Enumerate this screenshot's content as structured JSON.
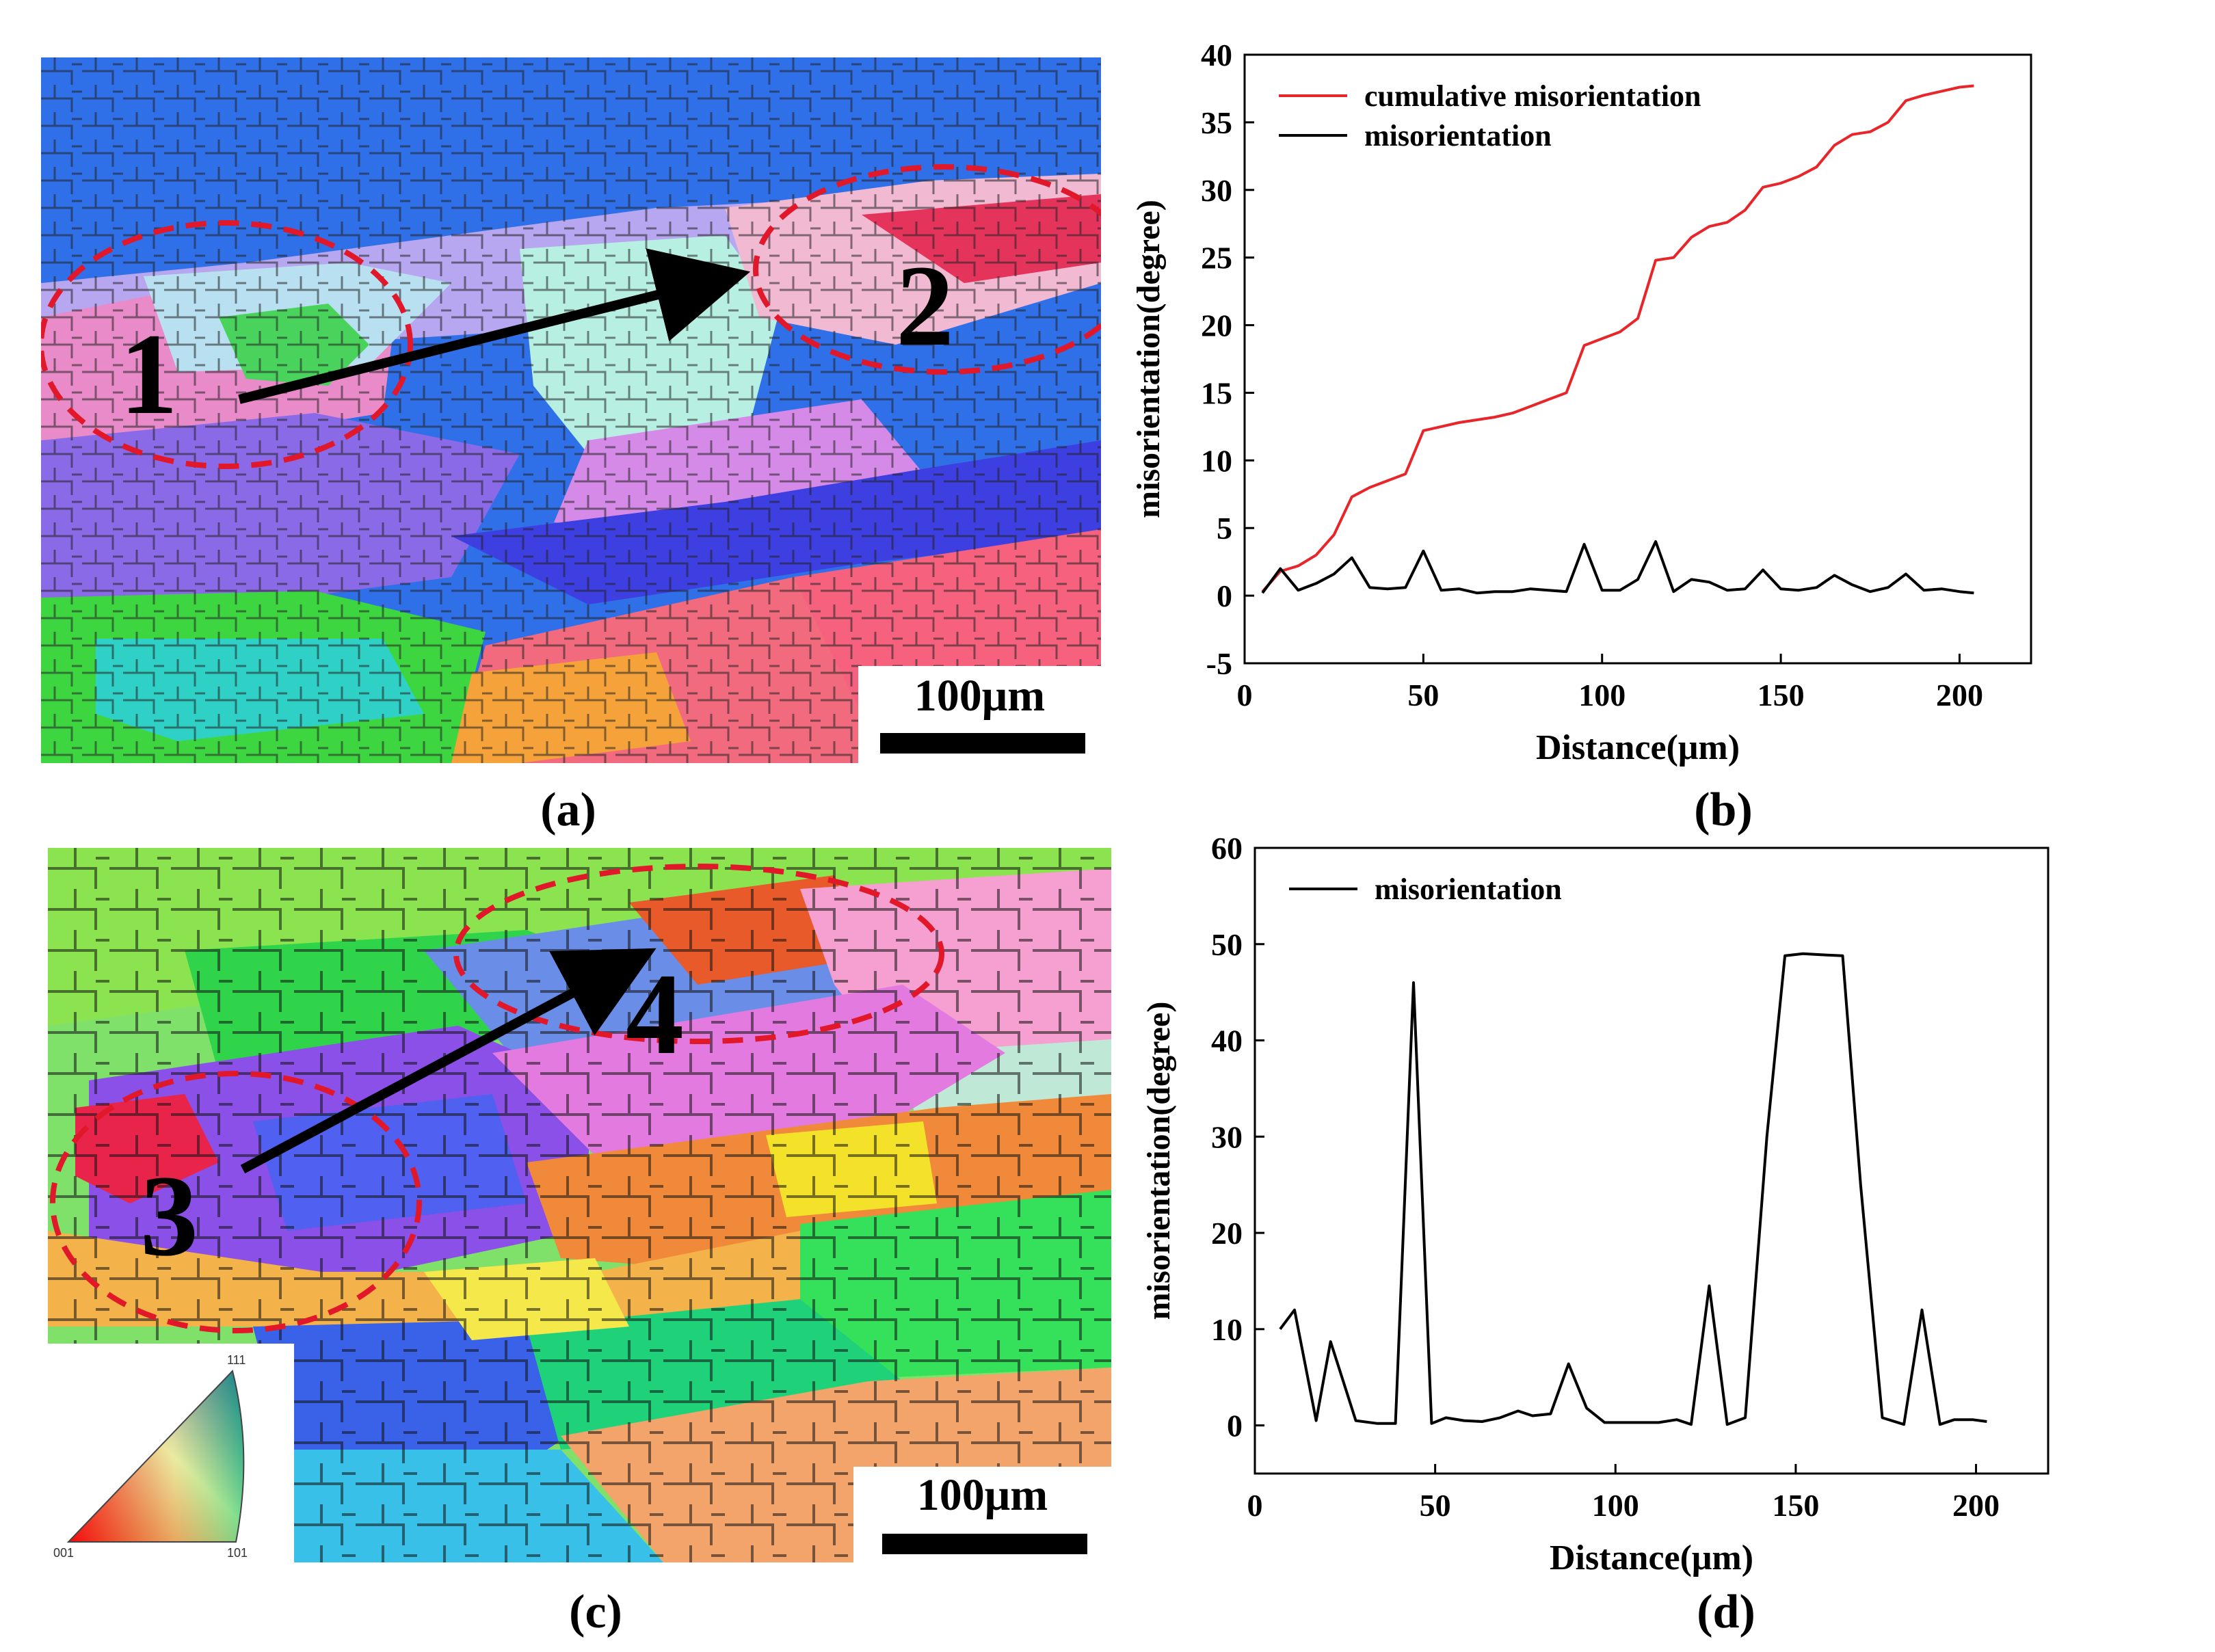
{
  "panels": {
    "a": {
      "caption": "(a)",
      "scale_label": "100μm",
      "region_labels": [
        "1",
        "2"
      ]
    },
    "c": {
      "caption": "(c)",
      "scale_label": "100μm",
      "region_labels": [
        "3",
        "4"
      ],
      "ipf_key": [
        "111",
        "001",
        "101"
      ]
    },
    "b": {
      "caption": "(b)"
    },
    "d": {
      "caption": "(d)"
    }
  },
  "colors": {
    "cumulative": "#e8262a",
    "misorientation": "#000000",
    "circle": "#e0182a"
  },
  "chart_data": [
    {
      "id": "b",
      "type": "line",
      "xlabel": "Distance(μm)",
      "ylabel": "misorientation(degree)",
      "xlim": [
        0,
        220
      ],
      "ylim": [
        -5,
        40
      ],
      "xticks": [
        0,
        50,
        100,
        150,
        200
      ],
      "yticks": [
        -5,
        0,
        5,
        10,
        15,
        20,
        25,
        30,
        35,
        40
      ],
      "legend": "top-left",
      "series": [
        {
          "name": "cumulative misorientation",
          "color": "#e8262a",
          "x": [
            5,
            10,
            15,
            20,
            25,
            30,
            35,
            40,
            45,
            50,
            55,
            60,
            65,
            70,
            75,
            80,
            85,
            90,
            95,
            100,
            105,
            110,
            115,
            120,
            125,
            130,
            135,
            140,
            145,
            150,
            155,
            160,
            165,
            170,
            175,
            180,
            185,
            190,
            195,
            200,
            204
          ],
          "y": [
            0.3,
            1.8,
            2.2,
            3.0,
            4.5,
            7.3,
            8.0,
            8.5,
            9.0,
            12.2,
            12.5,
            12.8,
            13.0,
            13.2,
            13.5,
            14.0,
            14.5,
            15.0,
            18.5,
            19.0,
            19.5,
            20.5,
            24.8,
            25.0,
            26.5,
            27.3,
            27.6,
            28.5,
            30.2,
            30.5,
            31.0,
            31.7,
            33.3,
            34.1,
            34.3,
            35.0,
            36.6,
            37.0,
            37.3,
            37.6,
            37.7
          ]
        },
        {
          "name": "misorientation",
          "color": "#000000",
          "x": [
            5,
            10,
            15,
            20,
            25,
            30,
            35,
            40,
            45,
            50,
            55,
            60,
            65,
            70,
            75,
            80,
            85,
            90,
            95,
            100,
            105,
            110,
            115,
            120,
            125,
            130,
            135,
            140,
            145,
            150,
            155,
            160,
            165,
            170,
            175,
            180,
            185,
            190,
            195,
            200,
            204
          ],
          "y": [
            0.2,
            2.0,
            0.4,
            0.9,
            1.6,
            2.8,
            0.6,
            0.5,
            0.6,
            3.3,
            0.4,
            0.5,
            0.2,
            0.3,
            0.3,
            0.5,
            0.4,
            0.3,
            3.8,
            0.4,
            0.4,
            1.2,
            4.0,
            0.3,
            1.2,
            1.0,
            0.4,
            0.5,
            1.9,
            0.5,
            0.4,
            0.6,
            1.5,
            0.8,
            0.3,
            0.6,
            1.6,
            0.4,
            0.5,
            0.3,
            0.2
          ]
        }
      ]
    },
    {
      "id": "d",
      "type": "line",
      "xlabel": "Distance(μm)",
      "ylabel": "misorientation(degree)",
      "xlim": [
        0,
        220
      ],
      "ylim": [
        -5,
        60
      ],
      "xticks": [
        0,
        50,
        100,
        150,
        200
      ],
      "yticks": [
        0,
        10,
        20,
        30,
        40,
        50,
        60
      ],
      "legend": "top-left",
      "series": [
        {
          "name": "misorientation",
          "color": "#000000",
          "x": [
            7,
            11,
            17,
            21,
            28,
            34,
            39,
            44,
            49,
            53,
            58,
            63,
            68,
            73,
            77,
            82,
            87,
            92,
            97,
            102,
            107,
            112,
            117,
            121,
            126,
            131,
            136,
            142,
            147,
            152,
            157,
            163,
            168,
            174,
            180,
            185,
            190,
            194,
            199,
            203
          ],
          "y": [
            10,
            12,
            0.5,
            8.7,
            0.5,
            0.2,
            0.2,
            46,
            0.2,
            0.8,
            0.5,
            0.4,
            0.8,
            1.5,
            1.0,
            1.2,
            6.4,
            1.8,
            0.3,
            0.3,
            0.3,
            0.3,
            0.6,
            0.1,
            14.5,
            0.1,
            0.8,
            30,
            48.8,
            49,
            48.9,
            48.8,
            25,
            0.8,
            0.1,
            12,
            0.1,
            0.6,
            0.6,
            0.4
          ]
        }
      ]
    }
  ]
}
